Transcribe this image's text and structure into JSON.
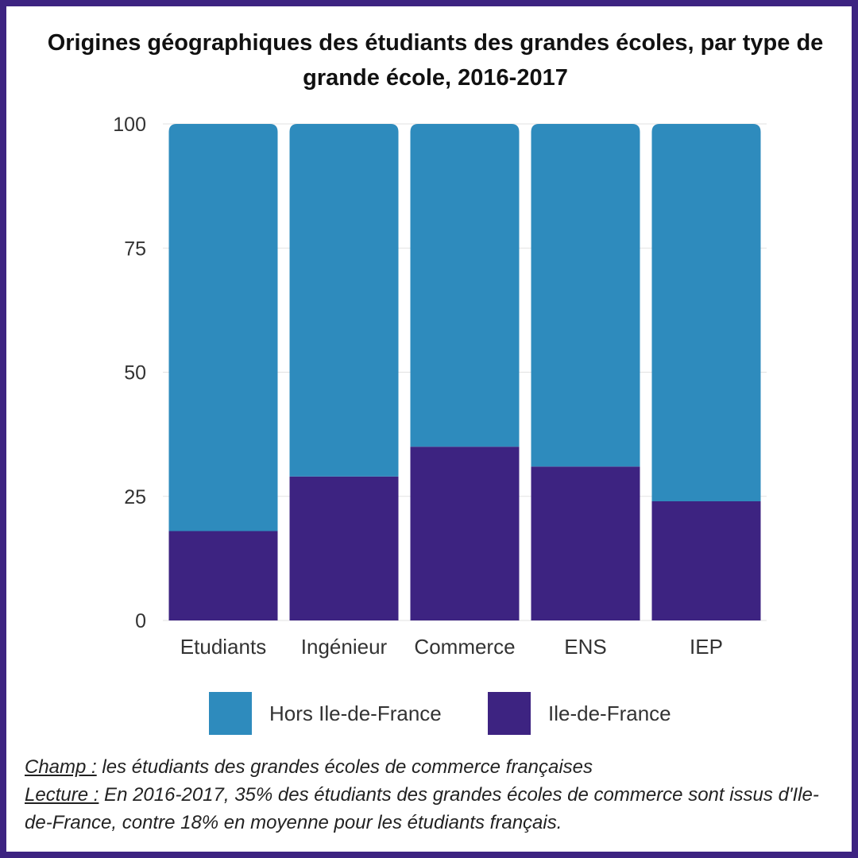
{
  "title": "Origines géographiques des étudiants des grandes écoles, par type de grande école, 2016-2017",
  "chart_data": {
    "type": "bar",
    "stacked": true,
    "categories": [
      "Etudiants",
      "Ingénieur",
      "Commerce",
      "ENS",
      "IEP"
    ],
    "series": [
      {
        "name": "Ile-de-France",
        "values": [
          18,
          29,
          35,
          31,
          24
        ],
        "color": "#3d2381"
      },
      {
        "name": "Hors Ile-de-France",
        "values": [
          82,
          71,
          65,
          69,
          76
        ],
        "color": "#2e8bbd"
      }
    ],
    "ylim": [
      0,
      100
    ],
    "yticks": [
      0,
      25,
      50,
      75,
      100
    ],
    "grid": true,
    "legend_position": "bottom",
    "legend_order": [
      "Hors Ile-de-France",
      "Ile-de-France"
    ]
  },
  "notes": {
    "champ_key": "Champ :",
    "champ_text": " les étudiants des grandes écoles de commerce françaises",
    "lecture_key": "Lecture :",
    "lecture_text": " En 2016-2017, 35% des étudiants des grandes écoles de commerce sont issus d'Ile-de-France, contre 18% en moyenne pour les étudiants français."
  }
}
